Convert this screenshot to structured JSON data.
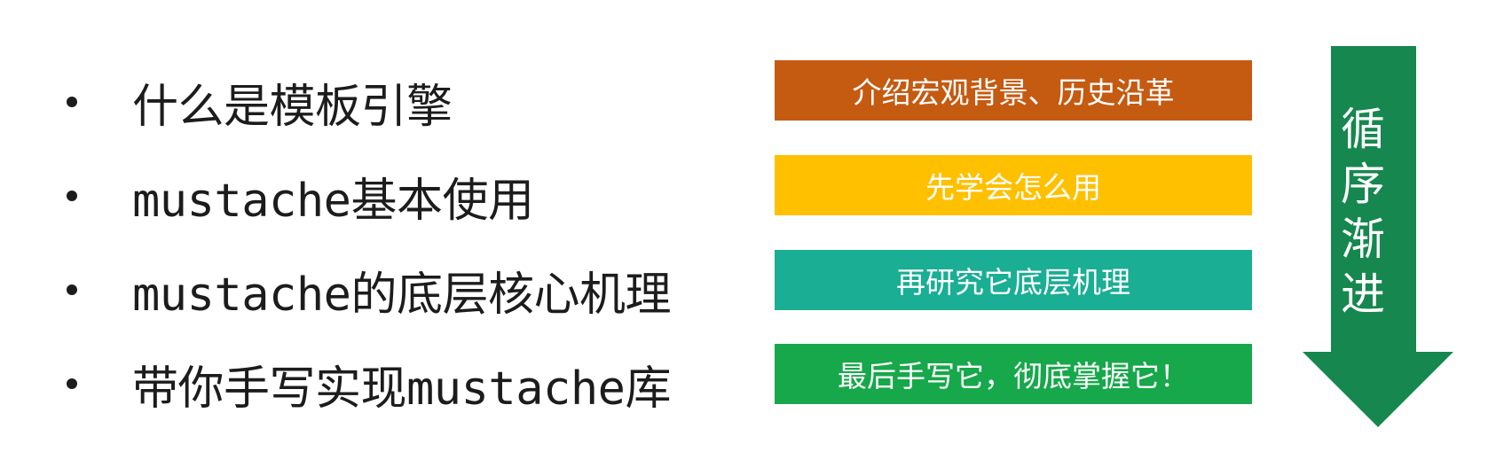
{
  "bullets": [
    "什么是模板引擎",
    "mustache基本使用",
    "mustache的底层核心机理",
    "带你手写实现mustache库"
  ],
  "tags": [
    {
      "label": "介绍宏观背景、历史沿革",
      "color": "#c55a11"
    },
    {
      "label": "先学会怎么用",
      "color": "#ffc000"
    },
    {
      "label": "再研究它底层机理",
      "color": "#1aae94"
    },
    {
      "label": "最后手写它，彻底掌握它！",
      "color": "#16a84a"
    }
  ],
  "arrow": {
    "label": "循\n序\n渐\n进",
    "color": "#15874f"
  }
}
